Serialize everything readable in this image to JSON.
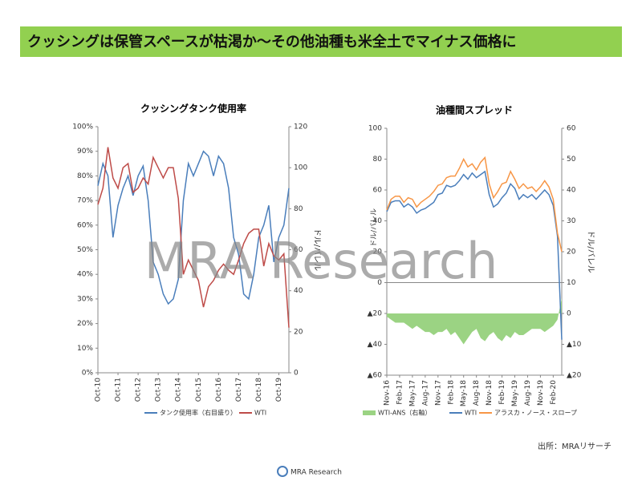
{
  "header": "クッシングは保管スペースが枯渇か～その他油種も米全土でマイナス価格に",
  "watermark": "MRA Research",
  "source": "出所：MRAリサーチ",
  "logo": "MRA Research",
  "chart_data": [
    {
      "type": "line",
      "title": "クッシングタンク使用率",
      "y2label": "ドル/バレル",
      "categories": [
        "Oct-10",
        null,
        null,
        null,
        "Oct-11",
        null,
        null,
        null,
        "Oct-12",
        null,
        null,
        null,
        "Oct-13",
        null,
        null,
        null,
        "Oct-14",
        null,
        null,
        null,
        "Oct-15",
        null,
        null,
        null,
        "Oct-16",
        null,
        null,
        null,
        "Oct-17",
        null,
        null,
        null,
        "Oct-18",
        null,
        null,
        null,
        "Oct-19",
        null,
        null
      ],
      "ylim": [
        0,
        100
      ],
      "yticks": [
        {
          "value": 0,
          "label": "0%"
        },
        {
          "value": 10,
          "label": "10%"
        },
        {
          "value": 20,
          "label": "20%"
        },
        {
          "value": 30,
          "label": "30%"
        },
        {
          "value": 40,
          "label": "40%"
        },
        {
          "value": 50,
          "label": "50%"
        },
        {
          "value": 60,
          "label": "60%"
        },
        {
          "value": 70,
          "label": "70%"
        },
        {
          "value": 80,
          "label": "80%"
        },
        {
          "value": 90,
          "label": "90%"
        },
        {
          "value": 100,
          "label": "100%"
        }
      ],
      "y2lim": [
        0,
        120
      ],
      "y2ticks": [
        0,
        20,
        40,
        60,
        80,
        100,
        120
      ],
      "series": [
        {
          "name": "タンク使用率（右目盛り）",
          "color": "#4a7ebb",
          "values": [
            76,
            85,
            80,
            55,
            68,
            75,
            80,
            72,
            80,
            84,
            70,
            45,
            40,
            32,
            28,
            30,
            38,
            70,
            85,
            80,
            85,
            90,
            88,
            80,
            88,
            85,
            75,
            55,
            48,
            32,
            30,
            40,
            55,
            60,
            68,
            45,
            55,
            60,
            75
          ]
        },
        {
          "name": "WTI",
          "color": "#be4b48",
          "axis": "y2",
          "values": [
            82,
            90,
            110,
            95,
            90,
            100,
            102,
            88,
            90,
            95,
            92,
            105,
            100,
            95,
            100,
            100,
            85,
            48,
            55,
            50,
            45,
            32,
            42,
            45,
            50,
            53,
            50,
            48,
            55,
            63,
            68,
            70,
            70,
            52,
            63,
            57,
            55,
            58,
            22
          ]
        }
      ]
    },
    {
      "type": "line",
      "title": "油種間スプレッド",
      "ylabel": "ドル/バレル",
      "y2label": "ドル/バレル",
      "categories": [
        "Nov-16",
        null,
        null,
        "Feb-17",
        null,
        null,
        "May-17",
        null,
        null,
        "Aug-17",
        null,
        null,
        "Nov-17",
        null,
        null,
        "Feb-18",
        null,
        null,
        "May-18",
        null,
        null,
        "Aug-18",
        null,
        null,
        "Nov-18",
        null,
        null,
        "Feb-19",
        null,
        null,
        "May-19",
        null,
        null,
        "Aug-19",
        null,
        null,
        "Nov-19",
        null,
        null,
        "Feb-20",
        null,
        null
      ],
      "ylim": [
        -60,
        100
      ],
      "yticks": [
        {
          "value": -60,
          "label": "▲60"
        },
        {
          "value": -40,
          "label": "▲40"
        },
        {
          "value": -20,
          "label": "▲20"
        },
        0,
        20,
        40,
        60,
        80,
        100
      ],
      "y2lim": [
        -20,
        60
      ],
      "y2ticks": [
        {
          "value": -20,
          "label": "▲20"
        },
        {
          "value": -10,
          "label": "▲10"
        },
        0,
        10,
        20,
        30,
        40,
        50,
        60
      ],
      "series": [
        {
          "name": "WTI-ANS（右軸）",
          "color": "#9bd383",
          "axis": "y2",
          "type": "area",
          "values": [
            -1,
            -2,
            -3,
            -3,
            -3,
            -4,
            -5,
            -4,
            -5,
            -6,
            -6,
            -7,
            -6,
            -6,
            -5,
            -7,
            -6,
            -8,
            -10,
            -8,
            -6,
            -5,
            -8,
            -9,
            -7,
            -6,
            -8,
            -9,
            -7,
            -8,
            -6,
            -7,
            -7,
            -6,
            -5,
            -5,
            -5,
            -6,
            -5,
            -4,
            -2,
            5
          ]
        },
        {
          "name": "WTI",
          "color": "#4a7ebb",
          "values": [
            46,
            52,
            53,
            53,
            49,
            51,
            49,
            45,
            47,
            48,
            50,
            52,
            57,
            58,
            63,
            62,
            63,
            66,
            70,
            67,
            71,
            68,
            70,
            72,
            57,
            49,
            51,
            55,
            58,
            64,
            61,
            54,
            57,
            55,
            57,
            54,
            57,
            60,
            57,
            50,
            30,
            -37
          ]
        },
        {
          "name": "アラスカ・ノース・スロープ",
          "color": "#f79646",
          "values": [
            47,
            54,
            56,
            56,
            52,
            55,
            54,
            49,
            52,
            54,
            56,
            59,
            63,
            64,
            68,
            69,
            69,
            74,
            80,
            75,
            77,
            73,
            78,
            81,
            64,
            55,
            59,
            64,
            65,
            72,
            67,
            61,
            64,
            61,
            62,
            59,
            62,
            66,
            62,
            54,
            32,
            20
          ]
        }
      ]
    }
  ]
}
